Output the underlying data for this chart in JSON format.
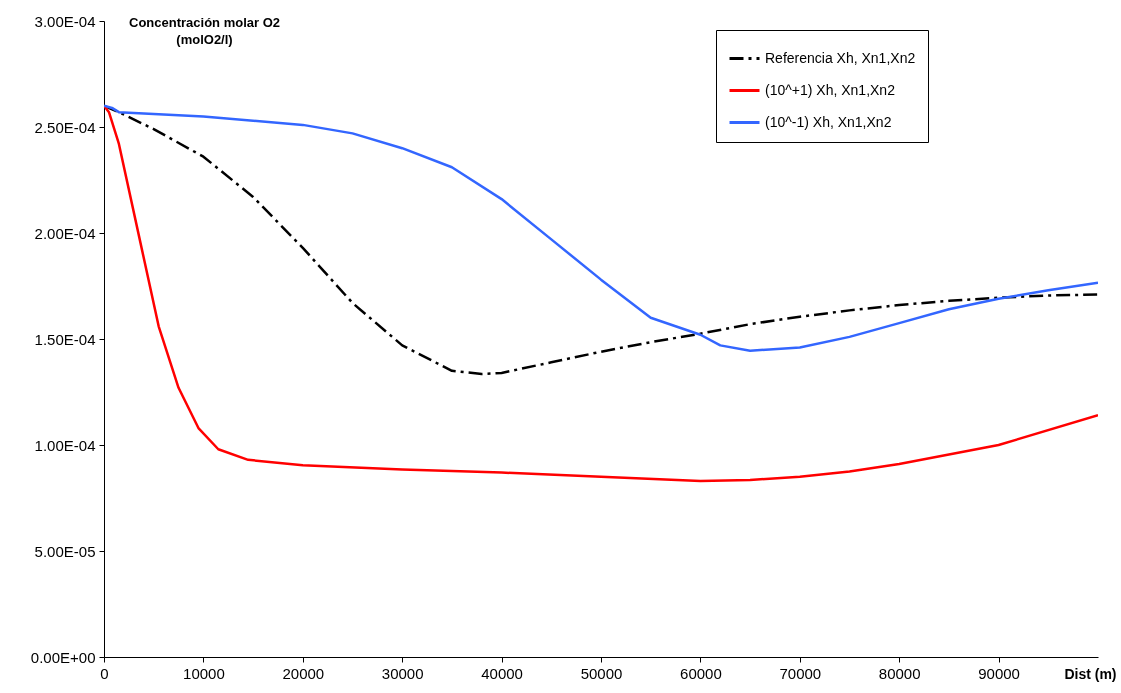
{
  "chart_data": {
    "type": "line",
    "ylabel": "Concentración molar O2\n(molO2/l)",
    "xlabel": "Dist (m)",
    "xlim": [
      0,
      100000
    ],
    "xticks": [
      0,
      10000,
      20000,
      30000,
      40000,
      50000,
      60000,
      70000,
      80000,
      90000
    ],
    "ylim": [
      0,
      0.0003
    ],
    "yticks": [
      {
        "value": 0,
        "label": "0.00E+00"
      },
      {
        "value": 5e-05,
        "label": "5.00E-05"
      },
      {
        "value": 0.0001,
        "label": "1.00E-04"
      },
      {
        "value": 0.00015,
        "label": "1.50E-04"
      },
      {
        "value": 0.0002,
        "label": "2.00E-04"
      },
      {
        "value": 0.00025,
        "label": "2.50E-04"
      },
      {
        "value": 0.0003,
        "label": "3.00E-04"
      }
    ],
    "grid": false,
    "legend": "top right",
    "series": [
      {
        "name": "Referencia Xh, Xn1,Xn2",
        "color": "#000000",
        "line_style": "dashdot",
        "x": [
          0,
          1500,
          5000,
          10000,
          15000,
          20000,
          25000,
          30000,
          35000,
          38000,
          40000,
          45000,
          50000,
          55000,
          60000,
          65000,
          70000,
          75000,
          80000,
          85000,
          90000,
          95000,
          100000
        ],
        "values": [
          0.00026,
          0.000257,
          0.000249,
          0.000236,
          0.000217,
          0.000193,
          0.000167,
          0.000147,
          0.000135,
          0.0001335,
          0.000134,
          0.000139,
          0.000144,
          0.0001485,
          0.0001525,
          0.000157,
          0.0001605,
          0.0001635,
          0.000166,
          0.000168,
          0.0001695,
          0.0001705,
          0.000171
        ]
      },
      {
        "name": "(10^+1) Xh, Xn1,Xn2",
        "color": "#ff0000",
        "line_style": "solid",
        "x": [
          0,
          500,
          1500,
          3500,
          5500,
          7500,
          9500,
          11500,
          14500,
          20000,
          30000,
          40000,
          50000,
          60000,
          65000,
          70000,
          75000,
          80000,
          90000,
          100000
        ],
        "values": [
          0.00026,
          0.000257,
          0.000242,
          0.000199,
          0.000156,
          0.000127,
          0.000108,
          9.8e-05,
          9.3e-05,
          9.05e-05,
          8.85e-05,
          8.7e-05,
          8.5e-05,
          8.3e-05,
          8.35e-05,
          8.5e-05,
          8.75e-05,
          9.1e-05,
          0.0001,
          0.000114
        ]
      },
      {
        "name": "(10^-1) Xh, Xn1,Xn2",
        "color": "#3366ff",
        "line_style": "solid",
        "x": [
          0,
          800,
          1500,
          10000,
          20000,
          25000,
          30000,
          35000,
          40000,
          45000,
          50000,
          55000,
          60000,
          62000,
          65000,
          70000,
          75000,
          80000,
          85000,
          90000,
          95000,
          100000
        ],
        "values": [
          0.00026,
          0.000259,
          0.000257,
          0.000255,
          0.000251,
          0.000247,
          0.00024,
          0.000231,
          0.000216,
          0.000197,
          0.000178,
          0.00016,
          0.000152,
          0.000147,
          0.0001445,
          0.000146,
          0.000151,
          0.0001575,
          0.000164,
          0.000169,
          0.000173,
          0.0001765
        ]
      }
    ]
  }
}
